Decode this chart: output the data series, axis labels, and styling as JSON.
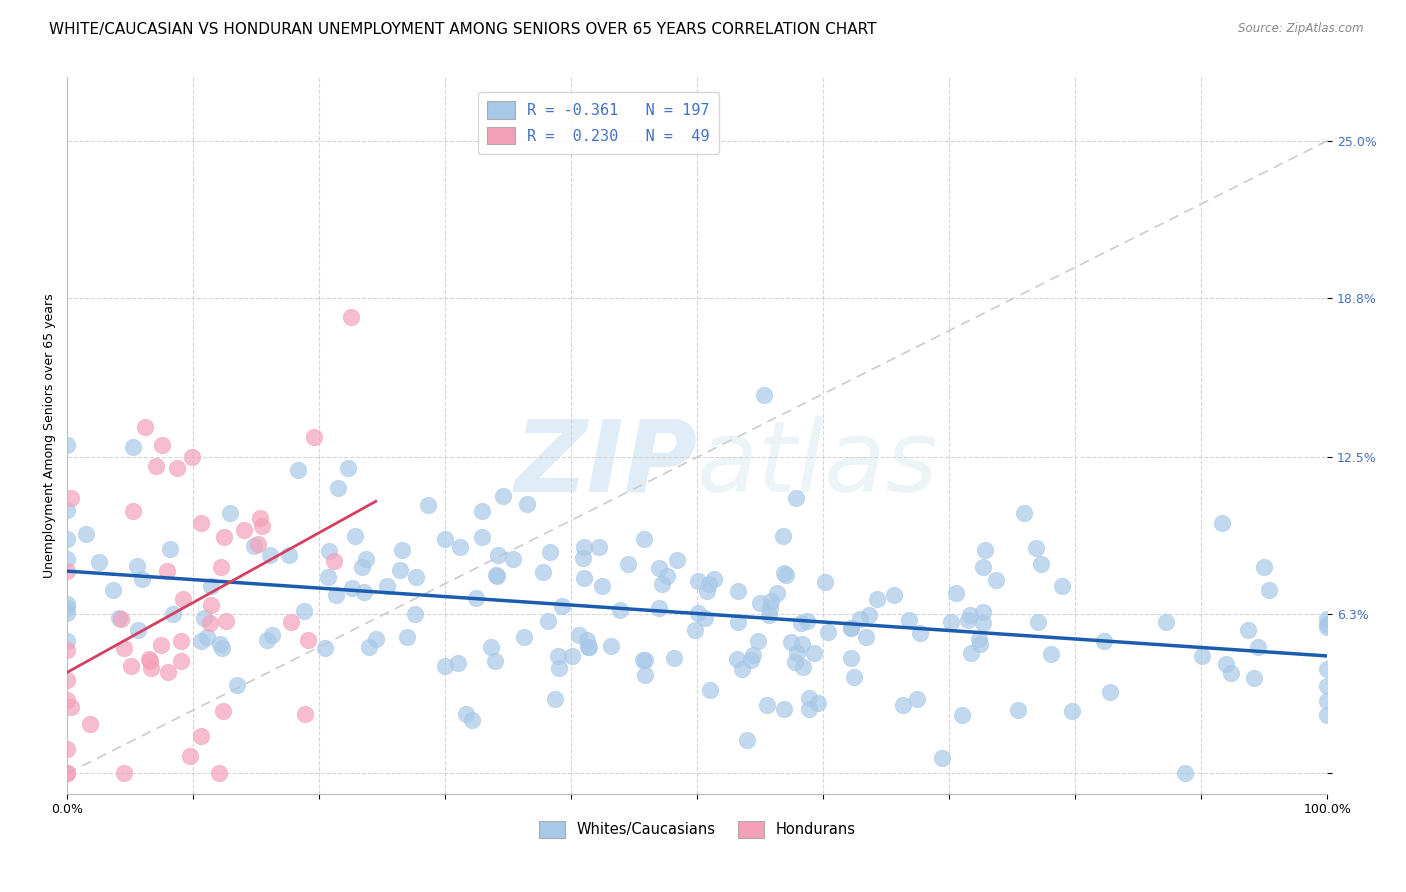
{
  "title": "WHITE/CAUCASIAN VS HONDURAN UNEMPLOYMENT AMONG SENIORS OVER 65 YEARS CORRELATION CHART",
  "source": "Source: ZipAtlas.com",
  "ylabel": "Unemployment Among Seniors over 65 years",
  "xlim": [
    0,
    1
  ],
  "ylim": [
    -0.01,
    0.28
  ],
  "ytick_positions": [
    0.0,
    0.063,
    0.125,
    0.188,
    0.25
  ],
  "ytick_labels": [
    "",
    "6.3%",
    "12.5%",
    "18.8%",
    "25.0%"
  ],
  "blue_color": "#A8C8E8",
  "pink_color": "#F4A0B8",
  "blue_line_color": "#1A5DAE",
  "pink_line_color": "#D44060",
  "diagonal_line_color": "#CCCCCC",
  "legend_label_blue": "R = -0.361   N = 197",
  "legend_label_pink": "R =  0.230   N =  49",
  "blue_R": -0.361,
  "blue_N": 197,
  "pink_R": 0.23,
  "pink_N": 49,
  "watermark_zip": "ZIP",
  "watermark_atlas": "atlas",
  "legend_footer_blue": "Whites/Caucasians",
  "legend_footer_pink": "Hondurans",
  "title_fontsize": 11,
  "axis_label_fontsize": 9,
  "tick_fontsize": 9,
  "seed_blue": 42,
  "seed_pink": 7
}
